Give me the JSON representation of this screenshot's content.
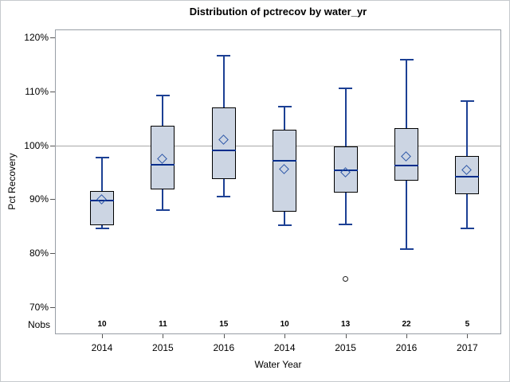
{
  "title": "Distribution of pctrecov by water_yr",
  "y_axis": {
    "label": "Pct Recovery",
    "tick_labels": [
      "120%",
      "110%",
      "100%",
      "90%",
      "80%",
      "70%"
    ]
  },
  "x_axis": {
    "label": "Water Year",
    "nobs_label": "Nobs"
  },
  "colors": {
    "box_fill": "#ccd5e3",
    "box_border": "#000000",
    "whisker": "#1c4094",
    "median": "#002d8c",
    "mean_marker": "#2c56a8",
    "outlier": "#222222",
    "reference_line": "#a8a8a8",
    "plot_border": "#989ea6"
  },
  "chart_data": {
    "type": "box",
    "title": "Distribution of pctrecov by water_yr",
    "xlabel": "Water Year",
    "ylabel": "Pct Recovery",
    "ylim": [
      65,
      121.5
    ],
    "yticks": [
      120,
      110,
      100,
      90,
      80,
      70
    ],
    "ytick_format": "percent",
    "grid": false,
    "reference_line": 100,
    "mean_marker": "diamond",
    "categories": [
      "2014",
      "2015",
      "2016",
      "2014",
      "2015",
      "2016",
      "2017"
    ],
    "nobs": [
      10,
      11,
      15,
      10,
      13,
      22,
      5
    ],
    "boxes": [
      {
        "year": "2014",
        "nobs": 10,
        "whisker_low": 84.6,
        "q1": 85.2,
        "median": 89.7,
        "mean": 89.9,
        "q3": 91.5,
        "whisker_high": 97.8,
        "outliers": []
      },
      {
        "year": "2015",
        "nobs": 11,
        "whisker_low": 88.0,
        "q1": 91.9,
        "median": 96.4,
        "mean": 97.4,
        "q3": 103.7,
        "whisker_high": 109.2,
        "outliers": []
      },
      {
        "year": "2016",
        "nobs": 15,
        "whisker_low": 90.5,
        "q1": 93.8,
        "median": 99.1,
        "mean": 101.0,
        "q3": 107.0,
        "whisker_high": 116.6,
        "outliers": []
      },
      {
        "year": "2014",
        "nobs": 10,
        "whisker_low": 85.2,
        "q1": 87.7,
        "median": 97.1,
        "mean": 95.5,
        "q3": 102.9,
        "whisker_high": 107.1,
        "outliers": []
      },
      {
        "year": "2015",
        "nobs": 13,
        "whisker_low": 85.3,
        "q1": 91.2,
        "median": 95.4,
        "mean": 94.9,
        "q3": 99.8,
        "whisker_high": 110.6,
        "outliers": [
          75.2
        ]
      },
      {
        "year": "2016",
        "nobs": 22,
        "whisker_low": 80.8,
        "q1": 93.5,
        "median": 96.3,
        "mean": 97.9,
        "q3": 103.2,
        "whisker_high": 115.8,
        "outliers": []
      },
      {
        "year": "2017",
        "nobs": 5,
        "whisker_low": 84.6,
        "q1": 90.9,
        "median": 94.2,
        "mean": 95.3,
        "q3": 98.0,
        "whisker_high": 108.2,
        "outliers": []
      }
    ]
  }
}
